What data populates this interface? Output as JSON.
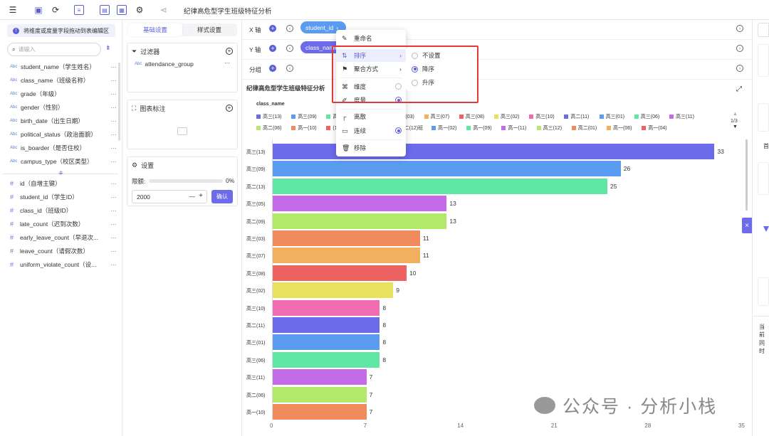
{
  "app": {
    "title": "纪律高危型学生班级特征分析"
  },
  "left": {
    "hint": "将维度或度量字段拖动到表编辑区",
    "search_placeholder": "请输入",
    "dimensions": [
      {
        "type": "Abc",
        "name": "student_name（学生姓名）"
      },
      {
        "type": "Abc",
        "name": "class_name（班级名称）"
      },
      {
        "type": "Abc",
        "name": "grade（年级）"
      },
      {
        "type": "Abc",
        "name": "gender（性别）"
      },
      {
        "type": "Abc",
        "name": "birth_date（出生日期）"
      },
      {
        "type": "Abc",
        "name": "political_status（政治面貌）"
      },
      {
        "type": "Abc",
        "name": "is_boarder（是否住校）"
      },
      {
        "type": "Abc",
        "name": "campus_type（校区类型）"
      }
    ],
    "measures": [
      {
        "type": "#",
        "name": "id（自增主键）"
      },
      {
        "type": "#",
        "name": "student_id（学生ID）"
      },
      {
        "type": "#",
        "name": "class_id（班级ID）"
      },
      {
        "type": "#",
        "name": "late_count（迟到次数）"
      },
      {
        "type": "#",
        "name": "early_leave_count（早退次..."
      },
      {
        "type": "#",
        "name": "leave_count（请假次数）"
      },
      {
        "type": "#",
        "name": "uniform_violate_count（设..."
      }
    ],
    "more": "···"
  },
  "mid": {
    "tab_basic": "基础设置",
    "tab_style": "样式设置",
    "filter_title": "过滤器",
    "filter_item": "attendance_group",
    "filter_item_type": "Abc",
    "annot_title": "图表标注",
    "settings_title": "设置",
    "limit_label": "限额:",
    "limit_pct": "0%",
    "limit_value": "2000",
    "confirm": "确认",
    "minus": "—",
    "plus": "+"
  },
  "axes": {
    "x_label": "X 轴",
    "y_label": "Y 轴",
    "group_label": "分组",
    "x_pill": "student_id",
    "y_pill": "class_name"
  },
  "context_menu": {
    "items": [
      {
        "icon": "✎",
        "label": "重命名"
      },
      {
        "icon": "⇅",
        "label": "排序",
        "arrow": "›"
      },
      {
        "icon": "⚑",
        "label": "聚合方式",
        "arrow": "›"
      },
      {
        "icon": "⌘",
        "label": "维度"
      },
      {
        "icon": "✐",
        "label": "度量"
      },
      {
        "icon": "┌",
        "label": "离散"
      },
      {
        "icon": "▭",
        "label": "连续"
      },
      {
        "icon": "🗑",
        "label": "移除"
      }
    ],
    "sort_options": [
      "不设置",
      "降序",
      "升序"
    ]
  },
  "legend": {
    "title": "class_name",
    "page": "1/3",
    "up": "▲",
    "down": "▼",
    "row1": [
      {
        "label": "高三(13)",
        "color": "#6c6bea"
      },
      {
        "label": "高三(09)",
        "color": "#5b9cf0"
      },
      {
        "label": "高二(13)",
        "color": "#5ee8a4"
      },
      {
        "label": "(09)",
        "color": "#b3e96b"
      },
      {
        "label": "高三(03)",
        "color": "#f08b5e"
      },
      {
        "label": "高三(07)",
        "color": "#f0b060"
      },
      {
        "label": "高三(08)",
        "color": "#ee6262"
      },
      {
        "label": "高三(02)",
        "color": "#e8e15e"
      },
      {
        "label": "高三(10)",
        "color": "#f06bb0"
      },
      {
        "label": "高二(11)",
        "color": "#6c6bea"
      },
      {
        "label": "高三(01)",
        "color": "#5b9cf0"
      },
      {
        "label": "高三(06)",
        "color": "#5ee8a4"
      },
      {
        "label": "高三(11)",
        "color": "#c46bea"
      }
    ],
    "row2": [
      {
        "label": "高二(06)",
        "color": "#b3e96b"
      },
      {
        "label": "高一(10)",
        "color": "#f08b5e"
      },
      {
        "label": "(11)班",
        "color": "#ee6262"
      },
      {
        "label": "高三(04)",
        "color": "#f06bb0"
      },
      {
        "label": "高二(12)班",
        "color": "#6c6bea"
      },
      {
        "label": "高一(02)",
        "color": "#5b9cf0"
      },
      {
        "label": "高一(09)",
        "color": "#5ee8a4"
      },
      {
        "label": "高一(11)",
        "color": "#c46bea"
      },
      {
        "label": "高三(12)",
        "color": "#b3e96b"
      },
      {
        "label": "高二(01)",
        "color": "#f08b5e"
      },
      {
        "label": "高一(06)",
        "color": "#f0b060"
      },
      {
        "label": "高一(04)",
        "color": "#ee6262"
      }
    ]
  },
  "chart_data": {
    "type": "bar",
    "orientation": "horizontal",
    "title": "纪律高危型学生班级特征分析",
    "categories": [
      "高三(13)",
      "高三(09)",
      "高二(13)",
      "高三(05)",
      "高二(09)",
      "高三(03)",
      "高三(07)",
      "高三(08)",
      "高三(02)",
      "高三(10)",
      "高二(11)",
      "高三(01)",
      "高三(06)",
      "高三(11)",
      "高二(06)",
      "高一(10)"
    ],
    "values": [
      33,
      26,
      25,
      13,
      13,
      11,
      11,
      10,
      9,
      8,
      8,
      8,
      8,
      7,
      7,
      7
    ],
    "colors": [
      "#6c6bea",
      "#5b9cf0",
      "#5ee8a4",
      "#c46bea",
      "#b3e96b",
      "#f08b5e",
      "#f0b060",
      "#ee6262",
      "#e8e15e",
      "#f06bb0",
      "#6c6bea",
      "#5b9cf0",
      "#5ee8a4",
      "#c46bea",
      "#b3e96b",
      "#f08b5e"
    ],
    "xlim": [
      0,
      35
    ],
    "xticks": [
      0,
      7,
      14,
      21,
      28,
      35
    ]
  },
  "watermark": "公众号 · 分析小栈",
  "right": {
    "t1": "首",
    "t2": "当前",
    "t3": "同时"
  }
}
